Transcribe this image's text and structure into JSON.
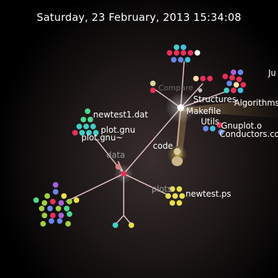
{
  "header": {
    "timestamp": "Saturday, 23 February, 2013 15:34:08"
  },
  "labels": {
    "newtest1": "newtest1.dat",
    "plot_gnu": "plot.gnu",
    "plot_gnu_backup": "plot.gnu~",
    "data": "data",
    "code": "code",
    "plots": "plots",
    "newtest_ps": "newtest.ps",
    "makefile": "Makefile",
    "utils": "Utils",
    "structures": "Structures",
    "algorithms": "Algorithms",
    "gnuplot_o": "Gnuplot.o",
    "conductors": "Conductors.co",
    "compare": "Compare",
    "ju": "Ju"
  },
  "colors": {
    "branch": "#f0c8c8",
    "node_red": "#e8305a",
    "node_yellow": "#e8e050",
    "node_green": "#50d890",
    "node_blue": "#6888e8",
    "node_purple": "#a860e0",
    "node_lime": "#a0d040",
    "node_cyan": "#40d0c8"
  }
}
